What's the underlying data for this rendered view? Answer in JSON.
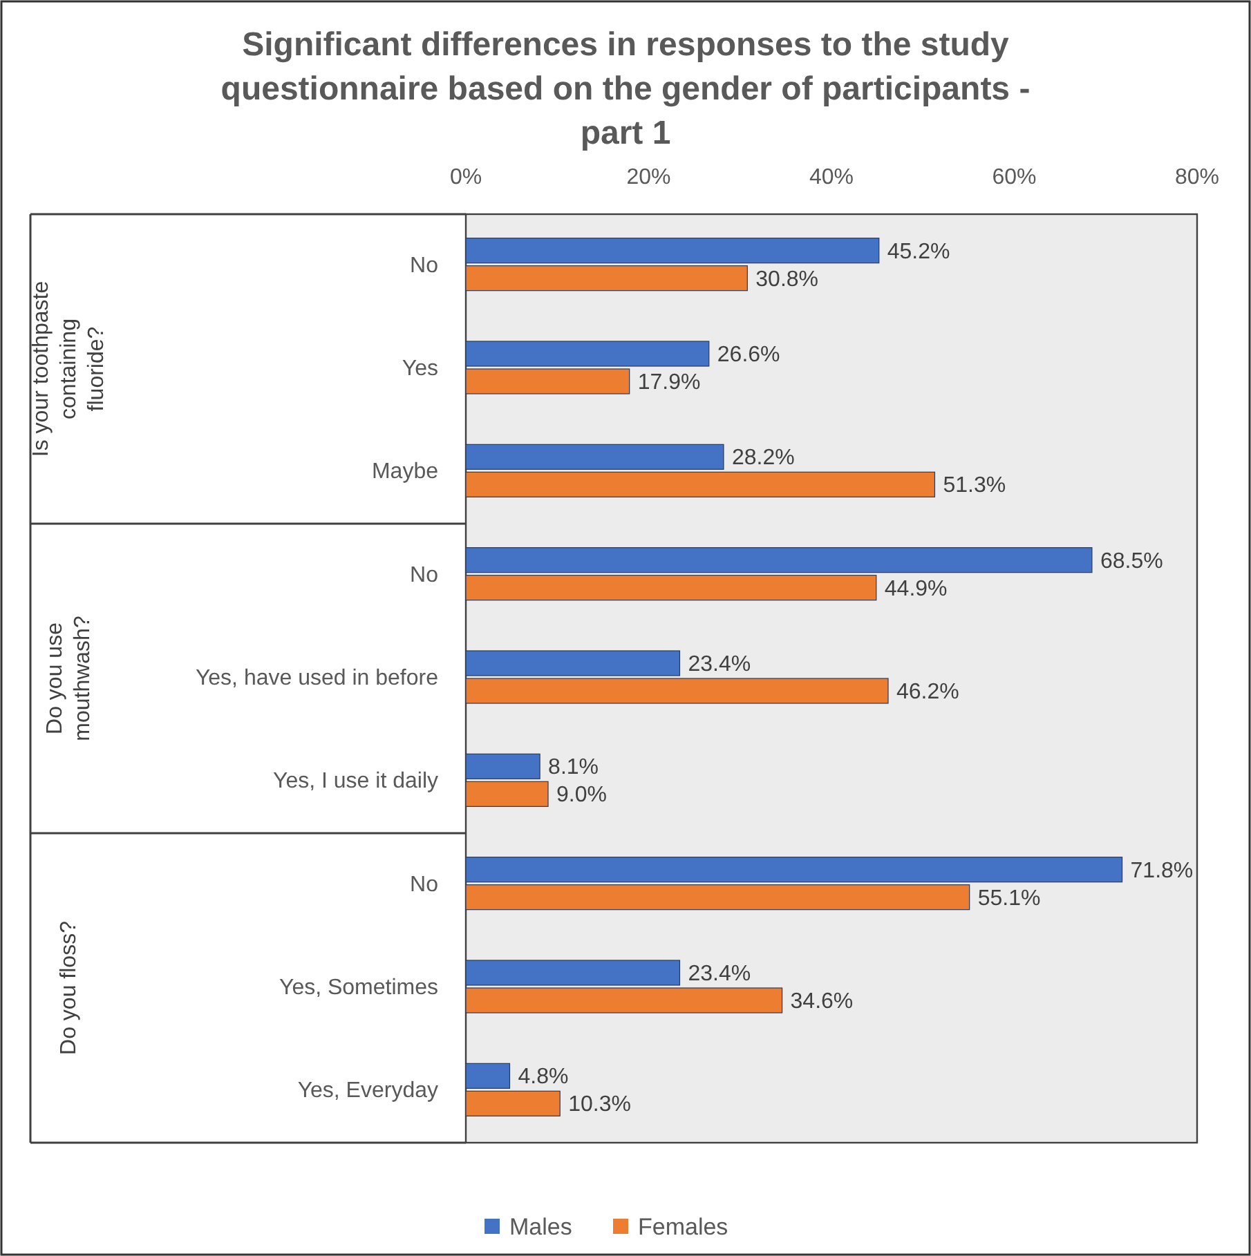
{
  "chart_data": {
    "type": "bar",
    "orientation": "horizontal",
    "title": "Significant differences in responses to the study questionnaire based on the gender of participants - part 1",
    "categories": [
      "No",
      "Yes",
      "Maybe",
      "No",
      "Yes, have used in before",
      "Yes, I use it daily",
      "No",
      "Yes, Sometimes",
      "Yes, Everyday"
    ],
    "series": [
      {
        "name": "Males",
        "color": "#4472c4",
        "values": [
          45.2,
          26.6,
          28.2,
          68.5,
          23.4,
          8.1,
          71.8,
          23.4,
          4.8
        ],
        "value_labels": [
          "45.2%",
          "26.6%",
          "28.2%",
          "68.5%",
          "23.4%",
          "8.1%",
          "71.8%",
          "23.4%",
          "4.8%"
        ]
      },
      {
        "name": "Females",
        "color": "#ed7d31",
        "values": [
          30.8,
          17.9,
          51.3,
          44.9,
          46.2,
          9.0,
          55.1,
          34.6,
          10.3
        ],
        "value_labels": [
          "30.8%",
          "17.9%",
          "51.3%",
          "44.9%",
          "46.2%",
          "9.0%",
          "55.1%",
          "34.6%",
          "10.3%"
        ]
      }
    ],
    "xlim": [
      0,
      80
    ],
    "xticks": [
      {
        "value": 0,
        "label": "0%"
      },
      {
        "value": 20,
        "label": "20%"
      },
      {
        "value": 40,
        "label": "40%"
      },
      {
        "value": 60,
        "label": "60%"
      },
      {
        "value": 80,
        "label": "80%"
      }
    ],
    "annotations": [
      "Is your toothpaste containing fluoride?",
      "Do you use mouthwash?",
      "Do you floss?"
    ],
    "legend": "bottom"
  }
}
